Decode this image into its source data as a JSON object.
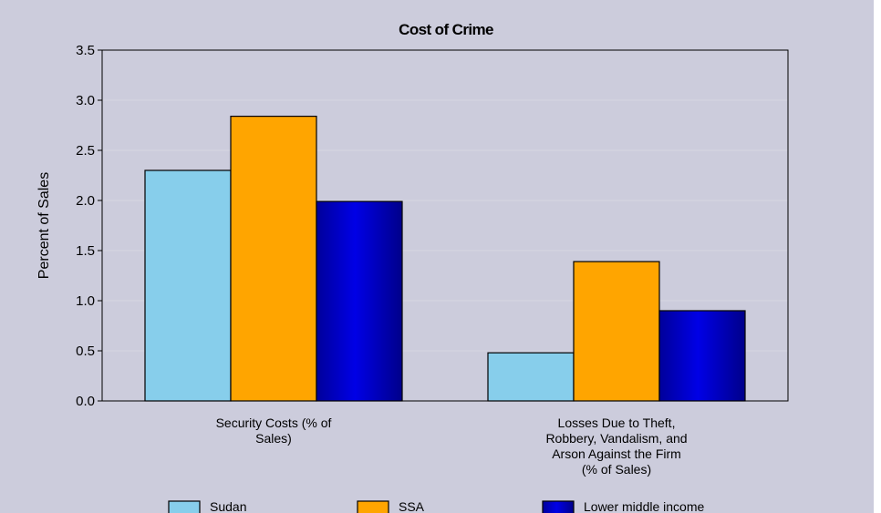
{
  "chart_data": {
    "type": "bar",
    "title": "Cost of Crime",
    "ylabel": "Percent of Sales",
    "xlabel": "",
    "ylim": [
      0,
      3.5
    ],
    "yticks": [
      "0.0",
      "0.5",
      "1.0",
      "1.5",
      "2.0",
      "2.5",
      "3.0",
      "3.5"
    ],
    "ytick_values": [
      0,
      0.5,
      1.0,
      1.5,
      2.0,
      2.5,
      3.0,
      3.5
    ],
    "grid": true,
    "legend_position": "bottom",
    "categories": [
      [
        "Security Costs (% of",
        "Sales)"
      ],
      [
        "Losses Due to Theft,",
        "Robbery, Vandalism, and",
        "Arson Against the Firm",
        "(% of Sales)"
      ]
    ],
    "series": [
      {
        "name": "Sudan",
        "color": "#87ceeb",
        "values": [
          2.3,
          0.48
        ]
      },
      {
        "name": "SSA",
        "color": "#ffa500",
        "values": [
          2.84,
          1.39
        ]
      },
      {
        "name": "Lower middle income",
        "color": "#0000b4",
        "values": [
          1.99,
          0.9
        ]
      }
    ]
  }
}
